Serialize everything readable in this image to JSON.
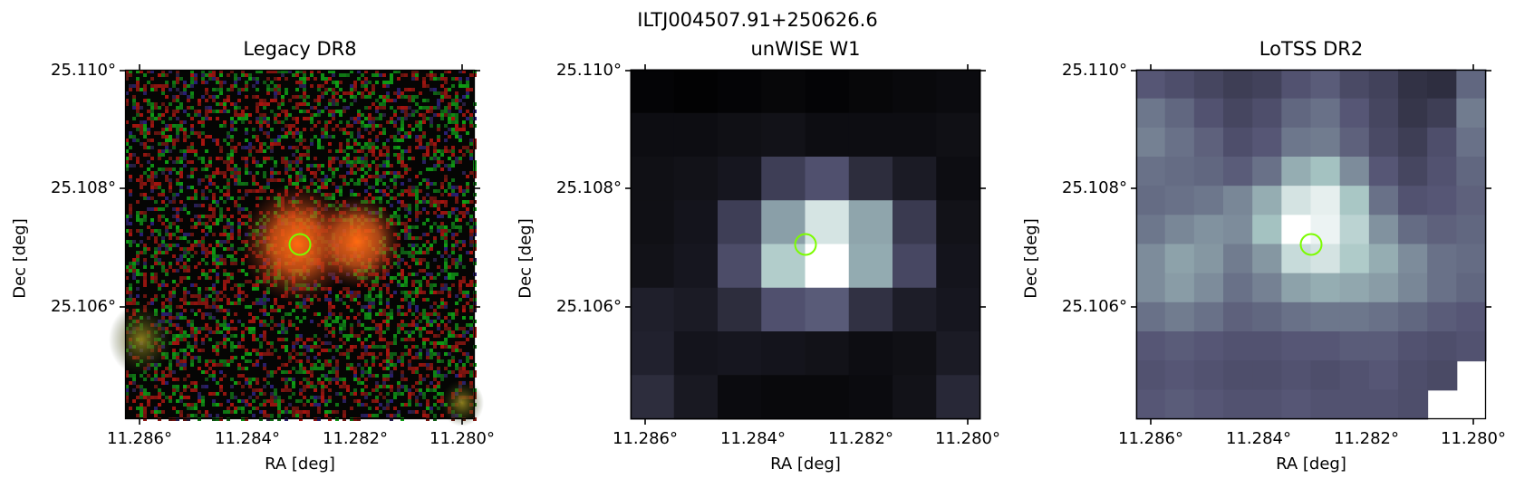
{
  "figure": {
    "title": "ILTJ004507.91+250626.6"
  },
  "panels": [
    {
      "title": "Legacy DR8",
      "xlabel": "RA [deg]",
      "ylabel": "Dec [deg]",
      "xticks": [
        "11.286°",
        "11.284°",
        "11.282°",
        "11.280°"
      ],
      "yticks": [
        "25.110°",
        "25.108°",
        "25.106°"
      ],
      "colormap": "rgb-composite"
    },
    {
      "title": "unWISE W1",
      "xlabel": "RA [deg]",
      "ylabel": "Dec [deg]",
      "xticks": [
        "11.286°",
        "11.284°",
        "11.282°",
        "11.280°"
      ],
      "yticks": [
        "25.110°",
        "25.108°",
        "25.106°"
      ],
      "colormap": "bone"
    },
    {
      "title": "LoTSS DR2",
      "xlabel": "RA [deg]",
      "ylabel": "Dec [deg]",
      "xticks": [
        "11.286°",
        "11.284°",
        "11.282°",
        "11.280°"
      ],
      "yticks": [
        "25.110°",
        "25.108°",
        "25.106°"
      ],
      "colormap": "bone"
    }
  ],
  "marker": {
    "shape": "circle",
    "color": "#7cfc00"
  },
  "colors": {
    "marker": "#7cfc00",
    "legacy_source": "#ff6a10"
  }
}
